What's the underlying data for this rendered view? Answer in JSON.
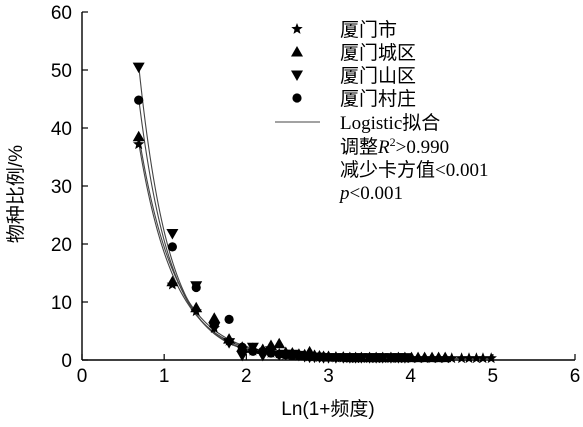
{
  "chart_data": {
    "type": "scatter",
    "xlabel": "Ln(1+频度)",
    "ylabel": "物种比例/%",
    "xlim": [
      0,
      6
    ],
    "ylim": [
      0,
      60
    ],
    "x_ticks": [
      "0",
      "1",
      "2",
      "3",
      "4",
      "5",
      "6"
    ],
    "y_ticks": [
      "0",
      "10",
      "20",
      "30",
      "40",
      "50",
      "60"
    ],
    "legend_position": "top-right",
    "series": [
      {
        "name": "厦门市",
        "marker": "star",
        "points": [
          [
            0.69,
            37.2
          ],
          [
            1.1,
            13.0
          ],
          [
            1.39,
            8.4
          ],
          [
            1.61,
            5.5
          ],
          [
            1.79,
            3.3
          ],
          [
            1.95,
            2.0
          ],
          [
            2.08,
            1.6
          ],
          [
            2.2,
            1.5
          ],
          [
            2.3,
            1.2
          ],
          [
            2.4,
            1.1
          ],
          [
            2.48,
            0.9
          ],
          [
            2.56,
            0.8
          ],
          [
            2.64,
            0.7
          ],
          [
            2.71,
            0.7
          ],
          [
            2.77,
            0.6
          ],
          [
            2.83,
            0.6
          ],
          [
            2.89,
            0.5
          ],
          [
            2.94,
            0.5
          ],
          [
            3.0,
            0.5
          ],
          [
            3.09,
            0.4
          ],
          [
            3.18,
            0.4
          ],
          [
            3.26,
            0.3
          ],
          [
            3.33,
            0.3
          ],
          [
            3.4,
            0.3
          ],
          [
            3.5,
            0.3
          ],
          [
            3.58,
            0.3
          ],
          [
            3.66,
            0.3
          ],
          [
            3.76,
            0.3
          ],
          [
            3.85,
            0.3
          ],
          [
            3.93,
            0.3
          ],
          [
            4.01,
            0.3
          ],
          [
            4.09,
            0.3
          ],
          [
            4.17,
            0.3
          ],
          [
            4.26,
            0.3
          ],
          [
            4.34,
            0.3
          ],
          [
            4.42,
            0.3
          ],
          [
            4.5,
            0.3
          ],
          [
            4.62,
            0.3
          ],
          [
            4.71,
            0.3
          ],
          [
            4.8,
            0.3
          ],
          [
            4.88,
            0.3
          ],
          [
            4.98,
            0.3
          ]
        ]
      },
      {
        "name": "厦门城区",
        "marker": "triangle-up",
        "points": [
          [
            0.69,
            38.5
          ],
          [
            1.1,
            13.5
          ],
          [
            1.39,
            9.0
          ],
          [
            1.61,
            7.2
          ],
          [
            1.79,
            3.6
          ],
          [
            1.95,
            2.2
          ],
          [
            2.08,
            2.0
          ],
          [
            2.2,
            1.8
          ],
          [
            2.3,
            2.5
          ],
          [
            2.4,
            2.8
          ],
          [
            2.48,
            1.3
          ],
          [
            2.56,
            1.2
          ],
          [
            2.64,
            1.0
          ],
          [
            2.71,
            0.9
          ],
          [
            2.77,
            1.4
          ],
          [
            2.83,
            0.8
          ],
          [
            2.89,
            0.7
          ],
          [
            2.94,
            0.6
          ],
          [
            3.0,
            0.6
          ],
          [
            3.09,
            0.5
          ],
          [
            3.18,
            0.5
          ],
          [
            3.26,
            0.4
          ],
          [
            3.33,
            0.4
          ],
          [
            3.4,
            0.4
          ],
          [
            3.5,
            0.4
          ],
          [
            3.58,
            0.4
          ],
          [
            3.66,
            0.4
          ],
          [
            3.76,
            0.4
          ],
          [
            3.85,
            0.4
          ],
          [
            3.93,
            0.4
          ],
          [
            4.01,
            0.4
          ],
          [
            4.09,
            0.4
          ],
          [
            4.17,
            0.4
          ],
          [
            4.26,
            0.4
          ],
          [
            4.34,
            0.4
          ],
          [
            4.42,
            0.4
          ]
        ]
      },
      {
        "name": "厦门山区",
        "marker": "triangle-down",
        "points": [
          [
            0.69,
            50.5
          ],
          [
            1.1,
            21.8
          ],
          [
            1.39,
            12.8
          ],
          [
            1.61,
            5.7
          ],
          [
            1.79,
            3.0
          ],
          [
            1.95,
            0.8
          ],
          [
            2.08,
            2.2
          ],
          [
            2.2,
            0.8
          ],
          [
            2.3,
            1.6
          ],
          [
            2.4,
            0.9
          ],
          [
            2.48,
            1.0
          ],
          [
            2.56,
            1.0
          ],
          [
            2.64,
            0.8
          ],
          [
            2.71,
            0.6
          ],
          [
            2.77,
            0.5
          ],
          [
            2.83,
            0.5
          ],
          [
            2.89,
            0.5
          ],
          [
            2.94,
            0.4
          ],
          [
            3.0,
            0.4
          ],
          [
            3.09,
            0.4
          ],
          [
            3.18,
            0.4
          ],
          [
            3.26,
            0.4
          ],
          [
            3.33,
            0.4
          ],
          [
            3.4,
            0.4
          ],
          [
            3.5,
            0.4
          ],
          [
            3.58,
            0.4
          ],
          [
            3.66,
            0.4
          ],
          [
            3.76,
            0.4
          ],
          [
            3.85,
            0.4
          ],
          [
            3.93,
            0.4
          ]
        ]
      },
      {
        "name": "厦门村庄",
        "marker": "circle",
        "points": [
          [
            0.69,
            44.8
          ],
          [
            1.1,
            19.5
          ],
          [
            1.39,
            12.5
          ],
          [
            1.61,
            6.0
          ],
          [
            1.79,
            7.0
          ],
          [
            1.95,
            2.2
          ],
          [
            2.08,
            1.5
          ],
          [
            2.2,
            1.5
          ],
          [
            2.3,
            1.2
          ],
          [
            2.4,
            1.0
          ],
          [
            2.48,
            0.9
          ],
          [
            2.56,
            0.8
          ],
          [
            2.64,
            0.8
          ],
          [
            2.71,
            0.7
          ],
          [
            2.77,
            0.6
          ]
        ]
      }
    ],
    "fit_label": "Logistic拟合",
    "fits": [
      {
        "a": 37.2,
        "b": 2.3
      },
      {
        "a": 38.5,
        "b": 2.25
      },
      {
        "a": 50.5,
        "b": 2.7
      },
      {
        "a": 44.8,
        "b": 2.55
      }
    ],
    "annotations": {
      "line1_prefix": "调整",
      "line1_var": "R",
      "line1_sup": "2",
      "line1_suffix": ">0.990",
      "line2": "减少卡方值<0.001",
      "line3_var": "p",
      "line3_suffix": "<0.001"
    }
  }
}
